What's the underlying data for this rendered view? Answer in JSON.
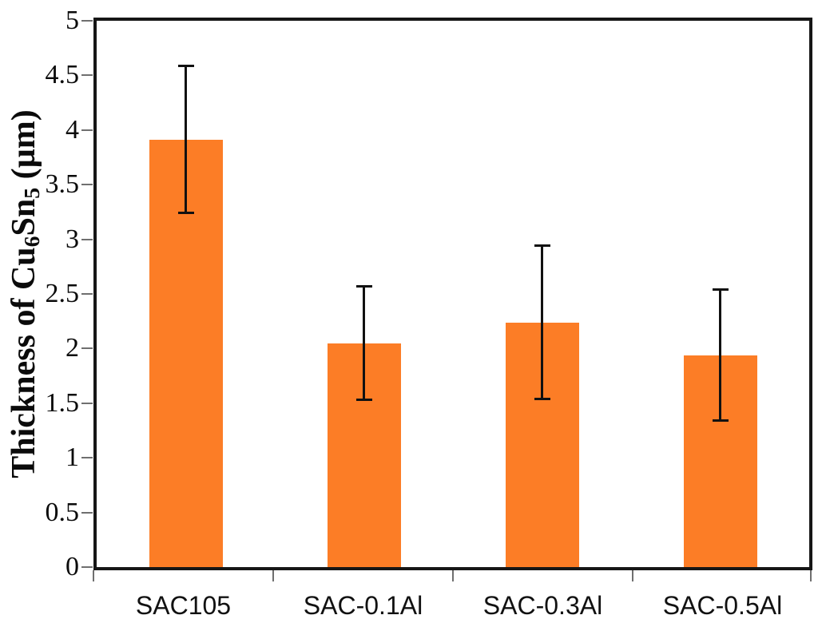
{
  "chart_data": {
    "type": "bar",
    "title": "",
    "xlabel": "",
    "ylabel_plain": "Thickness of Cu6Sn5 (µm)",
    "ylabel_parts": [
      {
        "text": "Thickness of Cu",
        "sub": false
      },
      {
        "text": "6",
        "sub": true
      },
      {
        "text": "Sn",
        "sub": false
      },
      {
        "text": "5",
        "sub": true
      },
      {
        "text": " (µm)",
        "sub": false
      }
    ],
    "categories": [
      "SAC105",
      "SAC-0.1Al",
      "SAC-0.3Al",
      "SAC-0.5Al"
    ],
    "values": [
      3.91,
      2.05,
      2.24,
      1.94
    ],
    "error_low": [
      3.24,
      1.53,
      1.54,
      1.34
    ],
    "error_high": [
      4.59,
      2.57,
      2.94,
      2.54
    ],
    "ylim": [
      0,
      5
    ],
    "ytick_step": 0.5,
    "ytick_labels": [
      "5",
      "4.5",
      "4",
      "3.5",
      "3",
      "2.5",
      "2",
      "1.5",
      "1",
      "0.5",
      "0"
    ],
    "grid": false,
    "legend": false,
    "bar_color": "#FC7D26",
    "axis_color": "#161616",
    "error_bar_color": "#111111",
    "background_color": "#FFFFFF"
  }
}
